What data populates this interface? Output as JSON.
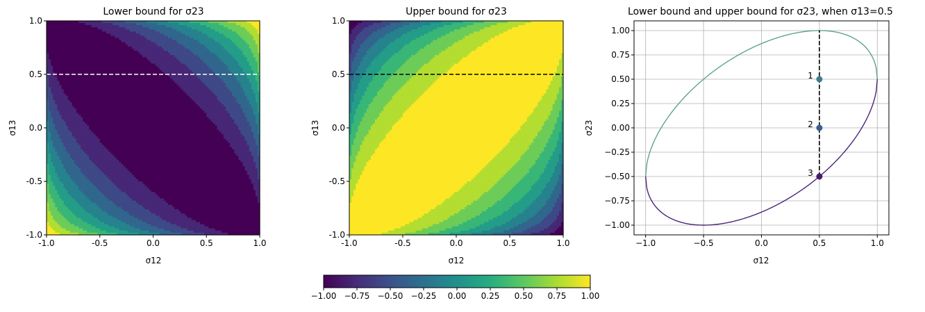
{
  "figure": {
    "colormap": "viridis",
    "colorbar": {
      "ticks": [
        "−1.00",
        "−0.75",
        "−0.50",
        "−0.25",
        "0.00",
        "0.25",
        "0.50",
        "0.75",
        "1.00"
      ],
      "range": [
        -1,
        1
      ]
    }
  },
  "chart_data": [
    {
      "type": "heatmap",
      "title": "Lower bound for σ23",
      "xlabel": "σ12",
      "ylabel": "σ13",
      "xlim": [
        -1,
        1
      ],
      "ylim": [
        -1,
        1
      ],
      "xticks": [
        "-1.0",
        "-0.5",
        "0.0",
        "0.5",
        "1.0"
      ],
      "yticks": [
        "1.0",
        "0.5",
        "0.0",
        "-0.5",
        "-1.0"
      ],
      "function": "s12*s13 - sqrt((1-s12^2)*(1-s13^2))",
      "value_range": [
        -1,
        1
      ],
      "annotation": {
        "kind": "dashed horizontal line",
        "y": 0.5,
        "color": "#ffffff"
      }
    },
    {
      "type": "heatmap",
      "title": "Upper bound for σ23",
      "xlabel": "σ12",
      "ylabel": "σ13",
      "xlim": [
        -1,
        1
      ],
      "ylim": [
        -1,
        1
      ],
      "xticks": [
        "-1.0",
        "-0.5",
        "0.0",
        "0.5",
        "1.0"
      ],
      "yticks": [
        "1.0",
        "0.5",
        "0.0",
        "-0.5",
        "-1.0"
      ],
      "function": "s12*s13 + sqrt((1-s12^2)*(1-s13^2))",
      "value_range": [
        -1,
        1
      ],
      "annotation": {
        "kind": "dashed horizontal line",
        "y": 0.5,
        "color": "#000000"
      }
    },
    {
      "type": "line",
      "title": "Lower bound and upper bound for σ23, when σ13=0.5",
      "xlabel": "σ12",
      "ylabel": "σ23",
      "xlim": [
        -1.1,
        1.1
      ],
      "ylim": [
        -1.1,
        1.1
      ],
      "grid": true,
      "xticks": [
        "−1.0",
        "−0.5",
        "0.0",
        "0.5",
        "1.0"
      ],
      "yticks": [
        "1.00",
        "0.75",
        "0.50",
        "0.25",
        "0.00",
        "−0.25",
        "−0.50",
        "−0.75",
        "−1.00"
      ],
      "sigma13": 0.5,
      "series": [
        {
          "function": "upper",
          "color": "#5fa38f"
        },
        {
          "function": "lower",
          "color": "#482677"
        }
      ],
      "dashed_segment": {
        "x": 0.5,
        "y_from": -0.5,
        "y_to": 1.0
      },
      "points": [
        {
          "label": "1",
          "x": 0.5,
          "y": 0.5,
          "color": "#3e7f8c"
        },
        {
          "label": "2",
          "x": 0.5,
          "y": 0.0,
          "color": "#3a5f8f"
        },
        {
          "label": "3",
          "x": 0.5,
          "y": -0.5,
          "color": "#481a6c"
        }
      ]
    }
  ]
}
